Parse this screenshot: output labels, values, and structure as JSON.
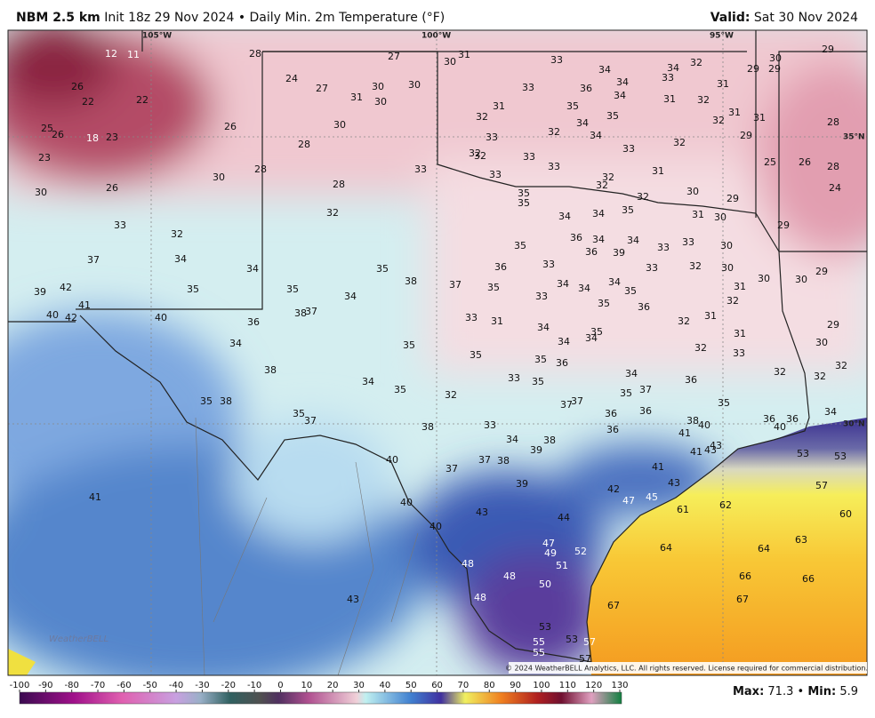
{
  "header": {
    "model": "NBM 2.5 km",
    "init": "Init 18z 29 Nov 2024",
    "separator": "•",
    "product": "Daily Min. 2m Temperature (°F)",
    "valid_label": "Valid:",
    "valid_date": "Sat 30 Nov 2024"
  },
  "map": {
    "grid_labels": [
      "105°W",
      "100°W",
      "95°W",
      "35°N",
      "30°N"
    ],
    "values": [
      12,
      11,
      28,
      27,
      30,
      31,
      33,
      34,
      34,
      32,
      30,
      29,
      29,
      29,
      26,
      22,
      22,
      24,
      27,
      31,
      30,
      30,
      30,
      33,
      36,
      34,
      33,
      34,
      31,
      31,
      32,
      35,
      35,
      31,
      32,
      32,
      31,
      31,
      28,
      25,
      26,
      18,
      23,
      26,
      30,
      34,
      33,
      32,
      34,
      32,
      29,
      33,
      28,
      32,
      32,
      33,
      23,
      25,
      26,
      28,
      28,
      33,
      33,
      33,
      31,
      32,
      32,
      30,
      26,
      30,
      28,
      24,
      35,
      35,
      32,
      30,
      29,
      35,
      32,
      34,
      34,
      31,
      30,
      29,
      33,
      32,
      36,
      34,
      34,
      33,
      33,
      30,
      35,
      36,
      39,
      37,
      34,
      34,
      35,
      36,
      33,
      33,
      32,
      30,
      29,
      30,
      30,
      39,
      42,
      35,
      35,
      34,
      38,
      37,
      35,
      34,
      34,
      34,
      35,
      33,
      31,
      32,
      41,
      40,
      42,
      40,
      36,
      38,
      37,
      33,
      31,
      35,
      36,
      32,
      31,
      29,
      34,
      35,
      34,
      34,
      34,
      35,
      31,
      30,
      32,
      33,
      35,
      35,
      36,
      32,
      32,
      32,
      38,
      34,
      35,
      32,
      33,
      35,
      34,
      37,
      35,
      36,
      35,
      38,
      37,
      37,
      36,
      36,
      35,
      34,
      35,
      37,
      38,
      33,
      38,
      40,
      36,
      36,
      40,
      36,
      41,
      34,
      38,
      39,
      41,
      43,
      43,
      53,
      53,
      40,
      37,
      38,
      37,
      41,
      39,
      43,
      57,
      42,
      47,
      45,
      41,
      40,
      61,
      62,
      60,
      43,
      44,
      40,
      63,
      47,
      49,
      52,
      64,
      64,
      48,
      51,
      48,
      66,
      66,
      50,
      48,
      43,
      67,
      67,
      53,
      53,
      57,
      55,
      55,
      57
    ],
    "copyright": "© 2024 WeatherBELL Analytics, LLC. All rights reserved. License required for commercial distribution.",
    "logo": "WeatherBELL"
  },
  "colorbar": {
    "ticks": [
      -100,
      -90,
      -80,
      -70,
      -60,
      -50,
      -40,
      -30,
      -20,
      -10,
      0,
      10,
      20,
      30,
      40,
      50,
      60,
      70,
      80,
      90,
      100,
      110,
      120,
      130
    ]
  },
  "footer": {
    "max_label": "Max:",
    "max": 71.3,
    "separator": "•",
    "min_label": "Min:",
    "min": 5.9
  }
}
